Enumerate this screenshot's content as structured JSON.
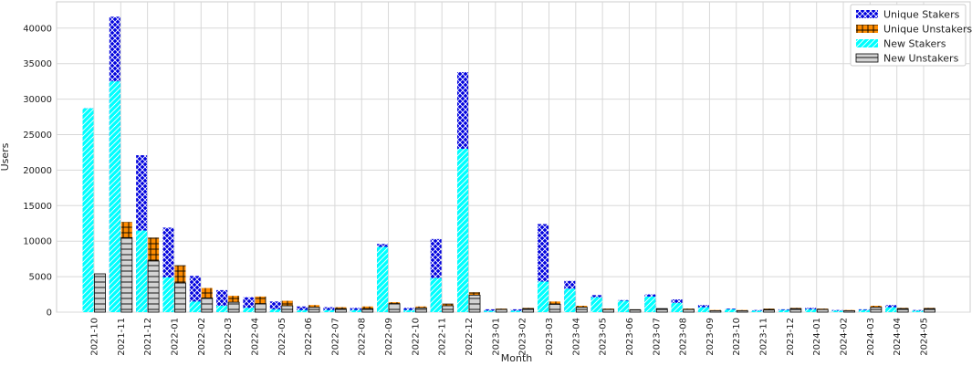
{
  "chart_data": {
    "type": "bar",
    "x_label": "Month",
    "y_label": "Users",
    "categories": [
      "2021-10",
      "2021-11",
      "2021-12",
      "2022-01",
      "2022-02",
      "2022-03",
      "2022-04",
      "2022-05",
      "2022-06",
      "2022-07",
      "2022-08",
      "2022-09",
      "2022-10",
      "2022-11",
      "2022-12",
      "2023-01",
      "2023-02",
      "2023-03",
      "2023-04",
      "2023-05",
      "2023-06",
      "2023-07",
      "2023-08",
      "2023-09",
      "2023-10",
      "2023-11",
      "2023-12",
      "2024-01",
      "2024-02",
      "2024-03",
      "2024-04",
      "2024-05"
    ],
    "series": [
      {
        "name": "Unique Stakers",
        "color": "#0000dd",
        "hatch": "x",
        "group": "left",
        "values": [
          28700,
          41600,
          22100,
          11900,
          5100,
          3100,
          2100,
          1500,
          800,
          700,
          600,
          9600,
          600,
          10300,
          33800,
          400,
          400,
          12400,
          4400,
          2400,
          1700,
          2500,
          1800,
          1000,
          500,
          300,
          400,
          600,
          300,
          400,
          1000,
          300
        ]
      },
      {
        "name": "Unique Unstakers",
        "color": "#ff8c00",
        "hatch": "+",
        "group": "right",
        "values": [
          5400,
          12700,
          10500,
          6600,
          3400,
          2300,
          2200,
          1600,
          1000,
          700,
          800,
          1400,
          800,
          1200,
          2800,
          500,
          600,
          1500,
          900,
          500,
          400,
          500,
          500,
          300,
          300,
          500,
          600,
          500,
          300,
          900,
          600,
          600
        ]
      },
      {
        "name": "New Stakers",
        "color": "#00ffff",
        "hatch": "/",
        "group": "left",
        "values": [
          28700,
          32500,
          11500,
          4900,
          1500,
          900,
          600,
          400,
          300,
          300,
          300,
          9200,
          300,
          4800,
          23000,
          200,
          200,
          4300,
          3300,
          2100,
          1600,
          2200,
          1300,
          700,
          400,
          200,
          300,
          400,
          200,
          300,
          700,
          200
        ]
      },
      {
        "name": "New Unstakers",
        "color": "#d3d3d3",
        "hatch": "-",
        "group": "right",
        "values": [
          5400,
          10500,
          7200,
          4100,
          2000,
          1400,
          1200,
          900,
          700,
          500,
          500,
          1200,
          600,
          900,
          2400,
          400,
          500,
          1100,
          700,
          400,
          300,
          500,
          400,
          200,
          200,
          300,
          500,
          400,
          200,
          700,
          500,
          500
        ]
      }
    ],
    "ylim": [
      0,
      43700
    ],
    "yticks": [
      0,
      5000,
      10000,
      15000,
      20000,
      25000,
      30000,
      35000,
      40000
    ],
    "grid": true,
    "legend": "upper right"
  }
}
